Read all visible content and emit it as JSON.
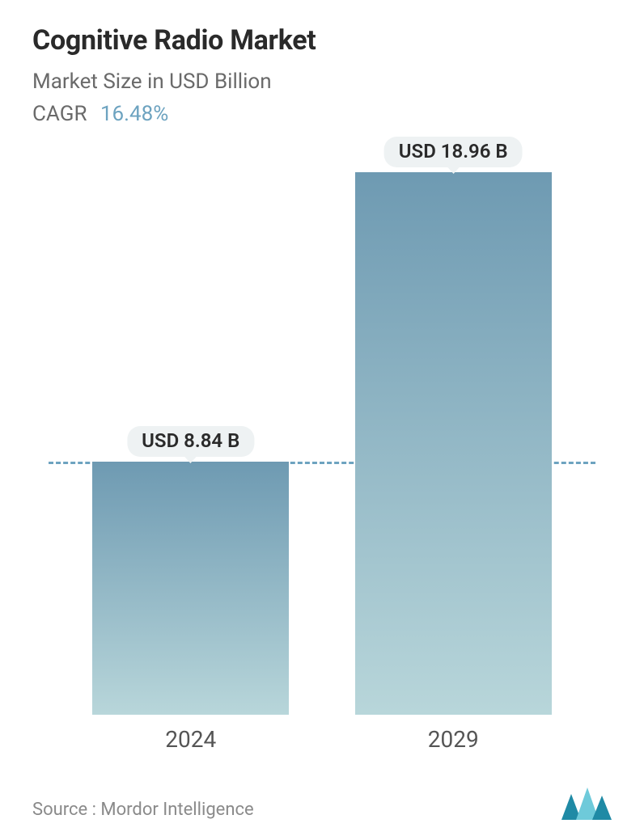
{
  "header": {
    "title": "Cognitive Radio Market",
    "subtitle": "Market Size in USD Billion",
    "cagr_label": "CAGR",
    "cagr_value": "16.48%"
  },
  "chart": {
    "type": "bar",
    "background_color": "#ffffff",
    "bar_gradient_top": "#6e9ab2",
    "bar_gradient_bottom": "#b8d6da",
    "bar_width_pct": 36,
    "bar_positions_pct": [
      26,
      74
    ],
    "categories": [
      "2024",
      "2029"
    ],
    "values": [
      8.84,
      18.96
    ],
    "value_labels": [
      "USD 8.84 B",
      "USD 18.96 B"
    ],
    "y_max": 20.0,
    "dashed_ref_value": 8.84,
    "dashed_line_color": "#6da3c0",
    "pill_bg": "#eef2f3",
    "pill_text_color": "#2a2a2a",
    "x_label_color": "#555555",
    "x_label_fontsize": 28,
    "value_label_fontsize": 24,
    "title_fontsize": 34,
    "subtitle_fontsize": 26
  },
  "footer": {
    "source_text": "Source :  Mordor Intelligence",
    "logo_colors": {
      "dark": "#1f8aa5",
      "light": "#6ecada"
    }
  }
}
